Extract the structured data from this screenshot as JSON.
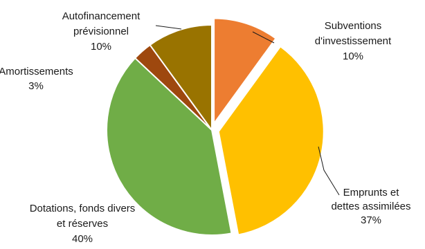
{
  "chart_data": {
    "type": "pie",
    "title": "",
    "slices": [
      {
        "label_lines": [
          "Subventions",
          "d'investissement"
        ],
        "percent_label": "10%",
        "value": 10,
        "color": "#ED7D31",
        "exploded": true
      },
      {
        "label_lines": [
          "Emprunts et",
          "dettes assimilées"
        ],
        "percent_label": "37%",
        "value": 37,
        "color": "#FFC000",
        "exploded": true
      },
      {
        "label_lines": [
          "Dotations,  fonds divers",
          "et réserves"
        ],
        "percent_label": "40%",
        "value": 40,
        "color": "#70AD47",
        "exploded": false
      },
      {
        "label_lines": [
          "Amortissements"
        ],
        "percent_label": "3%",
        "value": 3,
        "color": "#9E480E",
        "exploded": false
      },
      {
        "label_lines": [
          "Autofinancement",
          "prévisionnel"
        ],
        "percent_label": "10%",
        "value": 10,
        "color": "#997300",
        "exploded": false
      }
    ],
    "legend": "none",
    "start_angle_deg": 0,
    "direction": "clockwise"
  }
}
